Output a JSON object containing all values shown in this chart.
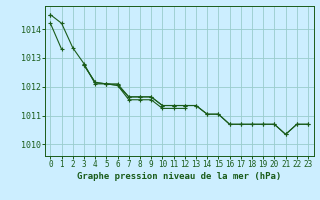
{
  "title": "Graphe pression niveau de la mer (hPa)",
  "background_color": "#cceeff",
  "grid_color": "#99cccc",
  "line_color": "#1a5c1a",
  "xlim": [
    -0.5,
    23.5
  ],
  "ylim": [
    1009.6,
    1014.8
  ],
  "yticks": [
    1010,
    1011,
    1012,
    1013,
    1014
  ],
  "xticks": [
    0,
    1,
    2,
    3,
    4,
    5,
    6,
    7,
    8,
    9,
    10,
    11,
    12,
    13,
    14,
    15,
    16,
    17,
    18,
    19,
    20,
    21,
    22,
    23
  ],
  "series": [
    {
      "x": [
        0,
        1
      ],
      "y": [
        1014.2,
        1013.3
      ]
    },
    {
      "x": [
        0,
        1,
        2,
        3,
        4,
        5,
        6,
        7,
        8,
        9,
        10,
        11,
        12,
        13,
        14,
        15,
        16,
        17,
        18,
        19,
        20,
        21,
        22,
        23
      ],
      "y": [
        1014.5,
        1014.2,
        1013.35,
        1012.8,
        1012.1,
        1012.1,
        1012.1,
        1011.65,
        1011.65,
        1011.65,
        1011.35,
        1011.35,
        1011.35,
        1011.35,
        1011.05,
        1011.05,
        1010.7,
        1010.7,
        1010.7,
        1010.7,
        1010.7,
        1010.35,
        1010.7,
        1010.7
      ]
    },
    {
      "x": [
        3,
        4,
        5,
        6,
        7,
        8,
        9,
        10,
        11,
        12,
        13,
        14,
        15,
        16,
        17,
        18,
        19,
        20,
        21,
        22,
        23
      ],
      "y": [
        1012.75,
        1012.15,
        1012.1,
        1012.05,
        1011.65,
        1011.65,
        1011.65,
        1011.35,
        1011.35,
        1011.35,
        1011.35,
        1011.05,
        1011.05,
        1010.7,
        1010.7,
        1010.7,
        1010.7,
        1010.7,
        1010.35,
        1010.7,
        1010.7
      ]
    },
    {
      "x": [
        3,
        4,
        5,
        6,
        7,
        8,
        9,
        10,
        11,
        12
      ],
      "y": [
        1012.75,
        1012.15,
        1012.1,
        1012.05,
        1011.55,
        1011.55,
        1011.55,
        1011.25,
        1011.25,
        1011.25
      ]
    },
    {
      "x": [
        0
      ],
      "y": [
        1014.5
      ]
    }
  ]
}
